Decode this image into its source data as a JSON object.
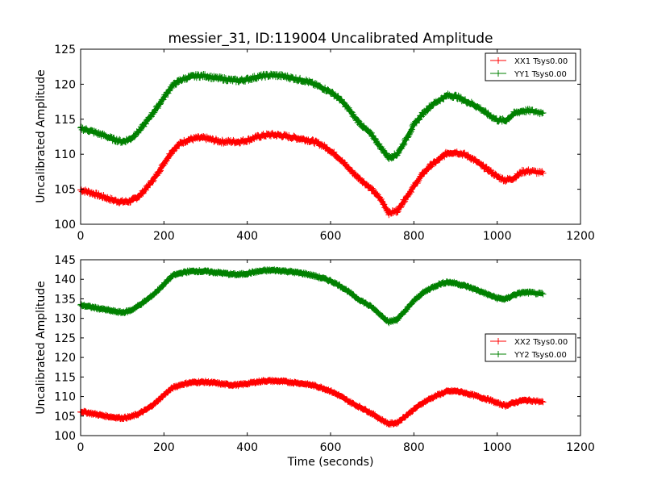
{
  "chart_data": [
    {
      "type": "line",
      "title": "messier_31, ID:119004 Uncalibrated Amplitude",
      "xlabel": "",
      "ylabel": "Uncalibrated Amplitude",
      "xlim": [
        0,
        1200
      ],
      "ylim": [
        100,
        125
      ],
      "xticks": [
        0,
        200,
        400,
        600,
        800,
        1000,
        1200
      ],
      "yticks": [
        100,
        105,
        110,
        115,
        120,
        125
      ],
      "legend_position": "top-right",
      "grid": false,
      "marker": "plus",
      "series": [
        {
          "name": "XX1 Tsys0.00",
          "color": "#ff0000",
          "x": [
            0,
            20,
            40,
            60,
            80,
            100,
            120,
            140,
            160,
            180,
            200,
            220,
            240,
            260,
            280,
            300,
            320,
            340,
            360,
            380,
            400,
            420,
            440,
            460,
            480,
            500,
            520,
            540,
            560,
            580,
            600,
            620,
            640,
            660,
            680,
            700,
            720,
            740,
            760,
            780,
            800,
            820,
            840,
            860,
            880,
            900,
            920,
            940,
            960,
            980,
            1000,
            1020,
            1040,
            1060,
            1080,
            1110
          ],
          "y": [
            104.9,
            104.6,
            104.2,
            103.8,
            103.4,
            103.2,
            103.3,
            104.0,
            105.3,
            106.8,
            108.7,
            110.5,
            111.6,
            112.1,
            112.3,
            112.3,
            112.0,
            111.8,
            111.8,
            111.8,
            112.0,
            112.4,
            112.7,
            112.8,
            112.7,
            112.5,
            112.3,
            112.1,
            111.8,
            111.3,
            110.5,
            109.5,
            108.2,
            107.0,
            106.0,
            104.9,
            103.6,
            101.6,
            101.9,
            103.7,
            105.4,
            107.1,
            108.4,
            109.2,
            110.2,
            110.3,
            110.0,
            109.4,
            108.5,
            107.7,
            106.8,
            106.3,
            106.6,
            107.5,
            107.6,
            107.3
          ]
        },
        {
          "name": "YY1 Tsys0.00",
          "color": "#008000",
          "x": [
            0,
            20,
            40,
            60,
            80,
            100,
            120,
            140,
            160,
            180,
            200,
            220,
            240,
            260,
            280,
            300,
            320,
            340,
            360,
            380,
            400,
            420,
            440,
            460,
            480,
            500,
            520,
            540,
            560,
            580,
            600,
            620,
            640,
            660,
            680,
            700,
            720,
            740,
            760,
            780,
            800,
            820,
            840,
            860,
            880,
            900,
            920,
            940,
            960,
            980,
            1000,
            1020,
            1040,
            1060,
            1080,
            1110
          ],
          "y": [
            113.7,
            113.4,
            113.0,
            112.6,
            112.1,
            111.8,
            112.2,
            113.3,
            114.8,
            116.4,
            118.1,
            119.8,
            120.6,
            121.0,
            121.2,
            121.2,
            120.9,
            120.8,
            120.6,
            120.5,
            120.7,
            121.0,
            121.2,
            121.3,
            121.2,
            121.0,
            120.7,
            120.5,
            120.0,
            119.5,
            118.9,
            118.0,
            116.7,
            115.1,
            113.8,
            112.7,
            111.0,
            109.5,
            110.0,
            112.0,
            114.2,
            115.7,
            116.9,
            117.7,
            118.4,
            118.3,
            117.7,
            117.2,
            116.5,
            115.6,
            114.9,
            114.8,
            115.8,
            116.2,
            116.2,
            115.9
          ]
        }
      ]
    },
    {
      "type": "line",
      "title": "",
      "xlabel": "Time (seconds)",
      "ylabel": "Uncalibrated Amplitude",
      "xlim": [
        0,
        1200
      ],
      "ylim": [
        100,
        145
      ],
      "xticks": [
        0,
        200,
        400,
        600,
        800,
        1000,
        1200
      ],
      "yticks": [
        100,
        105,
        110,
        115,
        120,
        125,
        130,
        135,
        140,
        145
      ],
      "legend_position": "center-right",
      "grid": false,
      "marker": "plus",
      "series": [
        {
          "name": "XX2 Tsys0.00",
          "color": "#ff0000",
          "x": [
            0,
            20,
            40,
            60,
            80,
            100,
            120,
            140,
            160,
            180,
            200,
            220,
            240,
            260,
            280,
            300,
            320,
            340,
            360,
            380,
            400,
            420,
            440,
            460,
            480,
            500,
            520,
            540,
            560,
            580,
            600,
            620,
            640,
            660,
            680,
            700,
            720,
            740,
            760,
            780,
            800,
            820,
            840,
            860,
            880,
            900,
            920,
            940,
            960,
            980,
            1000,
            1020,
            1040,
            1060,
            1080,
            1110
          ],
          "y": [
            106.2,
            105.8,
            105.4,
            105.0,
            104.7,
            104.5,
            104.8,
            105.6,
            106.8,
            108.4,
            110.4,
            112.2,
            113.0,
            113.5,
            113.7,
            113.7,
            113.5,
            113.2,
            113.0,
            113.0,
            113.3,
            113.7,
            114.0,
            114.0,
            113.9,
            113.7,
            113.5,
            113.2,
            112.8,
            112.2,
            111.4,
            110.3,
            109.0,
            107.8,
            106.8,
            105.6,
            104.2,
            103.0,
            103.3,
            105.0,
            106.7,
            108.3,
            109.5,
            110.5,
            111.3,
            111.4,
            111.0,
            110.4,
            109.8,
            109.2,
            108.3,
            107.7,
            108.4,
            109.0,
            109.0,
            108.6
          ]
        },
        {
          "name": "YY2 Tsys0.00",
          "color": "#008000",
          "x": [
            0,
            20,
            40,
            60,
            80,
            100,
            120,
            140,
            160,
            180,
            200,
            220,
            240,
            260,
            280,
            300,
            320,
            340,
            360,
            380,
            400,
            420,
            440,
            460,
            480,
            500,
            520,
            540,
            560,
            580,
            600,
            620,
            640,
            660,
            680,
            700,
            720,
            740,
            760,
            780,
            800,
            820,
            840,
            860,
            880,
            900,
            920,
            940,
            960,
            980,
            1000,
            1020,
            1040,
            1060,
            1080,
            1110
          ],
          "y": [
            133.4,
            133.0,
            132.6,
            132.2,
            131.8,
            131.5,
            132.0,
            133.3,
            134.8,
            136.6,
            138.7,
            140.9,
            141.6,
            142.0,
            142.1,
            142.0,
            141.8,
            141.6,
            141.3,
            141.2,
            141.5,
            141.9,
            142.2,
            142.3,
            142.2,
            142.0,
            141.7,
            141.4,
            140.9,
            140.3,
            139.6,
            138.5,
            137.1,
            135.4,
            134.1,
            132.8,
            130.9,
            129.1,
            129.7,
            132.0,
            134.5,
            136.4,
            137.7,
            138.7,
            139.3,
            139.0,
            138.4,
            137.7,
            136.9,
            136.0,
            135.2,
            134.9,
            136.0,
            136.6,
            136.6,
            136.2
          ]
        }
      ]
    }
  ]
}
